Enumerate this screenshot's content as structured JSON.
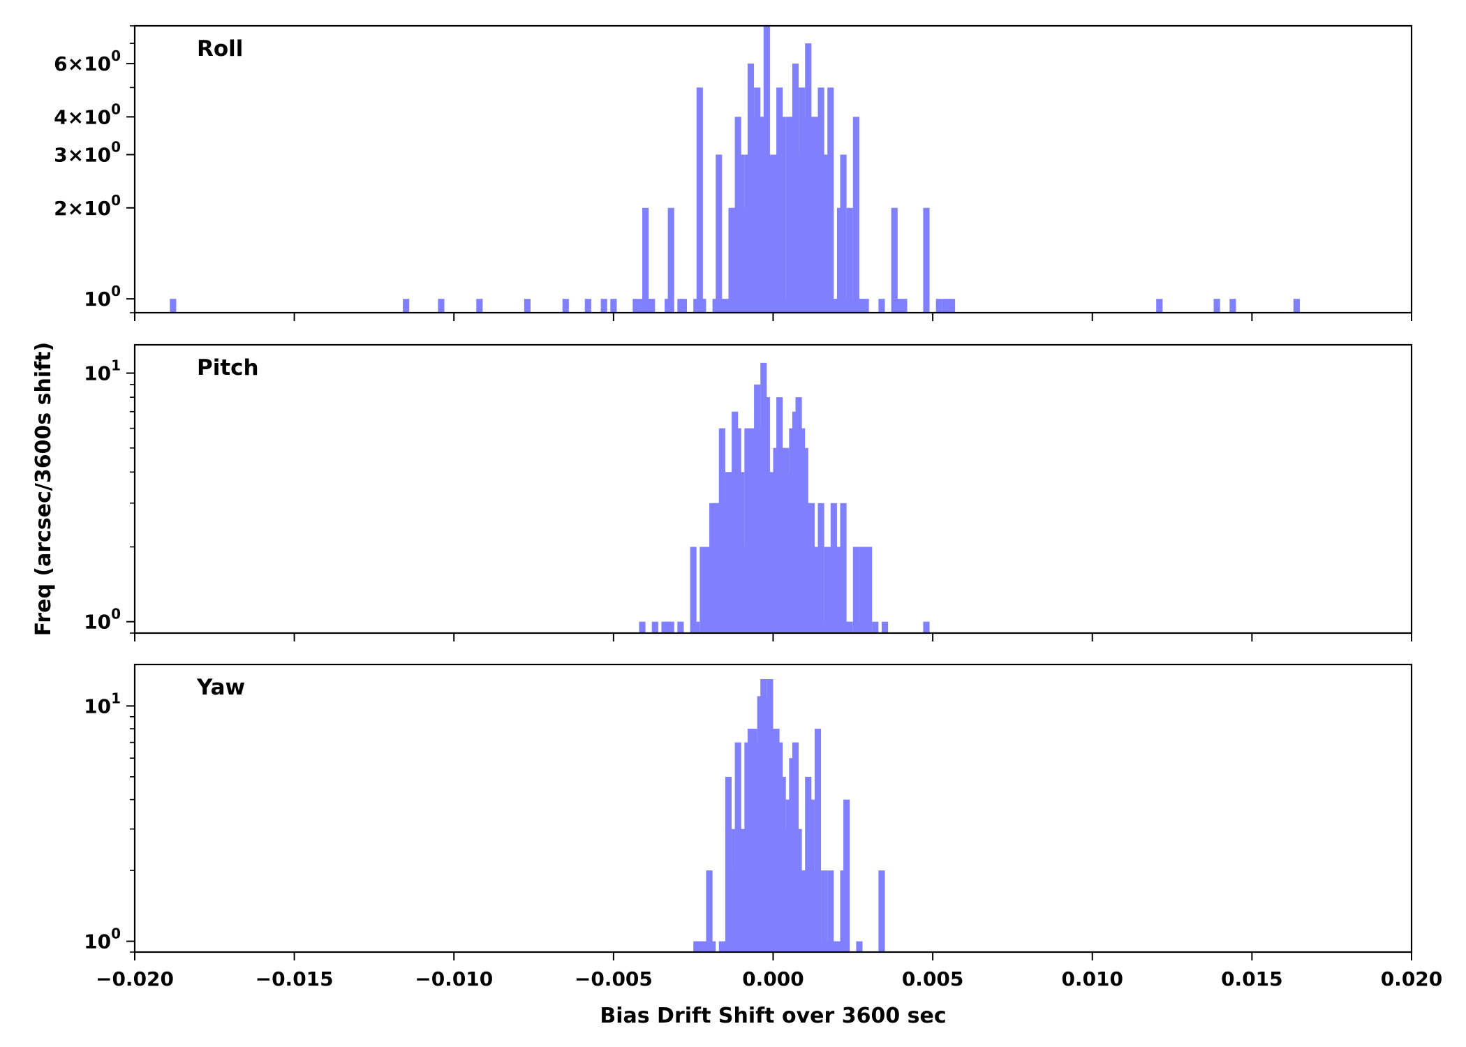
{
  "chart_data": {
    "type": "bar",
    "xlabel": "Bias Drift Shift over 3600 sec",
    "ylabel": "Freq (arcsec/3600s shift)",
    "xlim": [
      -0.02,
      0.02
    ],
    "x_ticks": [
      "−0.020",
      "−0.015",
      "−0.010",
      "−0.005",
      "0.000",
      "0.005",
      "0.010",
      "0.015",
      "0.020"
    ],
    "x_tick_values": [
      -0.02,
      -0.015,
      -0.01,
      -0.005,
      0.0,
      0.005,
      0.01,
      0.015,
      0.02
    ],
    "bin_width": 0.0002,
    "color": "#8080ff",
    "y_scale": "log",
    "panels": [
      {
        "label": "Roll",
        "ylim": [
          0.9,
          8.0
        ],
        "y_ticks": [
          {
            "value": 1,
            "mantissa": "",
            "exp": "0"
          },
          {
            "value": 2,
            "mantissa": "2",
            "exp": "0"
          },
          {
            "value": 3,
            "mantissa": "3",
            "exp": "0"
          },
          {
            "value": 4,
            "mantissa": "4",
            "exp": "0"
          },
          {
            "value": 6,
            "mantissa": "6",
            "exp": "0"
          }
        ],
        "bins": [
          [
            -0.0189,
            1
          ],
          [
            -0.0116,
            1
          ],
          [
            -0.0105,
            1
          ],
          [
            -0.0093,
            1
          ],
          [
            -0.0078,
            1
          ],
          [
            -0.0066,
            1
          ],
          [
            -0.0059,
            1
          ],
          [
            -0.0054,
            1
          ],
          [
            -0.0051,
            1
          ],
          [
            -0.0044,
            1
          ],
          [
            -0.0042,
            1
          ],
          [
            -0.0041,
            2
          ],
          [
            -0.004,
            1
          ],
          [
            -0.0039,
            1
          ],
          [
            -0.0034,
            1
          ],
          [
            -0.0033,
            2
          ],
          [
            -0.003,
            1
          ],
          [
            -0.0029,
            1
          ],
          [
            -0.0025,
            1
          ],
          [
            -0.0024,
            5
          ],
          [
            -0.0023,
            1
          ],
          [
            -0.0019,
            1
          ],
          [
            -0.0018,
            3
          ],
          [
            -0.0017,
            1
          ],
          [
            -0.0016,
            1
          ],
          [
            -0.0014,
            2
          ],
          [
            -0.0013,
            2
          ],
          [
            -0.0012,
            4
          ],
          [
            -0.0011,
            3
          ],
          [
            -0.001,
            2
          ],
          [
            -0.0009,
            3
          ],
          [
            -0.0008,
            6
          ],
          [
            -0.0007,
            4
          ],
          [
            -0.0006,
            5
          ],
          [
            -0.0005,
            4
          ],
          [
            -0.0004,
            4
          ],
          [
            -0.0003,
            8
          ],
          [
            -0.0002,
            3
          ],
          [
            -0.0001,
            3
          ],
          [
            0.0,
            3
          ],
          [
            0.0001,
            5
          ],
          [
            0.0002,
            4
          ],
          [
            0.0003,
            1
          ],
          [
            0.0004,
            4
          ],
          [
            0.0005,
            4
          ],
          [
            0.0006,
            6
          ],
          [
            0.0007,
            3
          ],
          [
            0.0008,
            5
          ],
          [
            0.0009,
            4
          ],
          [
            0.001,
            7
          ],
          [
            0.0011,
            4
          ],
          [
            0.0012,
            4
          ],
          [
            0.0013,
            3
          ],
          [
            0.0014,
            5
          ],
          [
            0.0015,
            3
          ],
          [
            0.0016,
            3
          ],
          [
            0.0017,
            5
          ],
          [
            0.0018,
            1
          ],
          [
            0.0019,
            1
          ],
          [
            0.002,
            2
          ],
          [
            0.0021,
            3
          ],
          [
            0.0022,
            1
          ],
          [
            0.0023,
            2
          ],
          [
            0.0024,
            1
          ],
          [
            0.0025,
            4
          ],
          [
            0.0026,
            1
          ],
          [
            0.0027,
            1
          ],
          [
            0.0028,
            1
          ],
          [
            0.0033,
            1
          ],
          [
            0.0037,
            2
          ],
          [
            0.0038,
            1
          ],
          [
            0.0039,
            1
          ],
          [
            0.004,
            1
          ],
          [
            0.0047,
            2
          ],
          [
            0.0051,
            1
          ],
          [
            0.0053,
            1
          ],
          [
            0.0054,
            1
          ],
          [
            0.0055,
            1
          ],
          [
            0.012,
            1
          ],
          [
            0.0138,
            1
          ],
          [
            0.0143,
            1
          ],
          [
            0.0163,
            1
          ]
        ]
      },
      {
        "label": "Pitch",
        "ylim": [
          0.9,
          13.0
        ],
        "y_ticks": [
          {
            "value": 1,
            "mantissa": "",
            "exp": "0"
          },
          {
            "value": 10,
            "mantissa": "",
            "exp": "1"
          }
        ],
        "bins": [
          [
            -0.0042,
            1
          ],
          [
            -0.0038,
            1
          ],
          [
            -0.0035,
            1
          ],
          [
            -0.0034,
            1
          ],
          [
            -0.0033,
            1
          ],
          [
            -0.003,
            1
          ],
          [
            -0.0026,
            2
          ],
          [
            -0.0025,
            1
          ],
          [
            -0.0023,
            2
          ],
          [
            -0.0022,
            2
          ],
          [
            -0.0021,
            2
          ],
          [
            -0.002,
            3
          ],
          [
            -0.0019,
            3
          ],
          [
            -0.0018,
            3
          ],
          [
            -0.0017,
            6
          ],
          [
            -0.0016,
            3
          ],
          [
            -0.0015,
            4
          ],
          [
            -0.0014,
            4
          ],
          [
            -0.0013,
            7
          ],
          [
            -0.0012,
            6
          ],
          [
            -0.0011,
            4
          ],
          [
            -0.001,
            2
          ],
          [
            -0.0009,
            6
          ],
          [
            -0.0008,
            6
          ],
          [
            -0.0007,
            6
          ],
          [
            -0.0006,
            9
          ],
          [
            -0.0005,
            6
          ],
          [
            -0.0004,
            11
          ],
          [
            -0.0003,
            8
          ],
          [
            -0.0002,
            4
          ],
          [
            -0.0001,
            1
          ],
          [
            0.0,
            5
          ],
          [
            0.0001,
            8
          ],
          [
            0.0002,
            5
          ],
          [
            0.0003,
            5
          ],
          [
            0.0004,
            4
          ],
          [
            0.0005,
            6
          ],
          [
            0.0006,
            7
          ],
          [
            0.0007,
            8
          ],
          [
            0.0008,
            6
          ],
          [
            0.0009,
            5
          ],
          [
            0.001,
            3
          ],
          [
            0.0011,
            3
          ],
          [
            0.0012,
            2
          ],
          [
            0.0013,
            1
          ],
          [
            0.0014,
            3
          ],
          [
            0.0015,
            1
          ],
          [
            0.0016,
            2
          ],
          [
            0.0017,
            2
          ],
          [
            0.0018,
            3
          ],
          [
            0.0019,
            2
          ],
          [
            0.002,
            2
          ],
          [
            0.0021,
            3
          ],
          [
            0.0022,
            1
          ],
          [
            0.0023,
            1
          ],
          [
            0.0025,
            2
          ],
          [
            0.0026,
            1
          ],
          [
            0.0027,
            2
          ],
          [
            0.0028,
            2
          ],
          [
            0.0029,
            2
          ],
          [
            0.0031,
            1
          ],
          [
            0.0034,
            1
          ],
          [
            0.0047,
            1
          ]
        ]
      },
      {
        "label": "Yaw",
        "ylim": [
          0.9,
          15.0
        ],
        "y_ticks": [
          {
            "value": 1,
            "mantissa": "",
            "exp": "0"
          },
          {
            "value": 10,
            "mantissa": "",
            "exp": "1"
          }
        ],
        "bins": [
          [
            -0.0025,
            1
          ],
          [
            -0.0024,
            1
          ],
          [
            -0.0023,
            1
          ],
          [
            -0.0022,
            1
          ],
          [
            -0.0021,
            2
          ],
          [
            -0.002,
            1
          ],
          [
            -0.0017,
            1
          ],
          [
            -0.0016,
            1
          ],
          [
            -0.0015,
            5
          ],
          [
            -0.0014,
            2
          ],
          [
            -0.0013,
            3
          ],
          [
            -0.0012,
            7
          ],
          [
            -0.0011,
            3
          ],
          [
            -0.001,
            3
          ],
          [
            -0.0009,
            7
          ],
          [
            -0.0008,
            8
          ],
          [
            -0.0007,
            8
          ],
          [
            -0.0006,
            7
          ],
          [
            -0.0005,
            11
          ],
          [
            -0.0004,
            13
          ],
          [
            -0.0003,
            11
          ],
          [
            -0.0002,
            13
          ],
          [
            -0.0001,
            7
          ],
          [
            0.0,
            8
          ],
          [
            0.0001,
            7
          ],
          [
            0.0002,
            5
          ],
          [
            0.0003,
            3
          ],
          [
            0.0004,
            4
          ],
          [
            0.0005,
            6
          ],
          [
            0.0006,
            7
          ],
          [
            0.0007,
            3
          ],
          [
            0.0008,
            2
          ],
          [
            0.0009,
            2
          ],
          [
            0.001,
            5
          ],
          [
            0.0011,
            4
          ],
          [
            0.0012,
            2
          ],
          [
            0.0013,
            8
          ],
          [
            0.0014,
            1
          ],
          [
            0.0015,
            2
          ],
          [
            0.0016,
            1
          ],
          [
            0.0017,
            2
          ],
          [
            0.0018,
            1
          ],
          [
            0.0019,
            1
          ],
          [
            0.002,
            1
          ],
          [
            0.0021,
            2
          ],
          [
            0.0022,
            4
          ],
          [
            0.0026,
            1
          ],
          [
            0.0033,
            2
          ]
        ]
      }
    ]
  }
}
